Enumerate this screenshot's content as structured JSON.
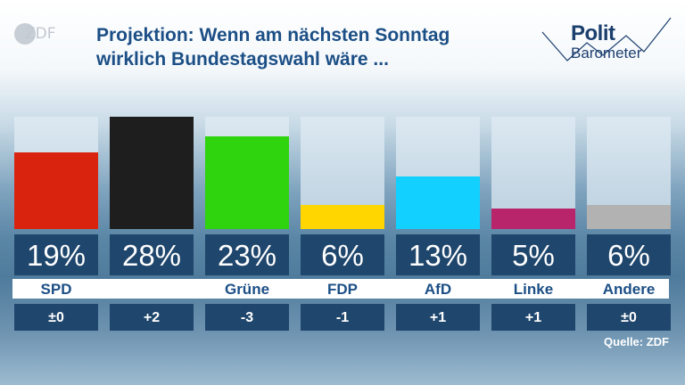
{
  "brand": {
    "logo_text": "ZDF"
  },
  "header": {
    "title_line1": "Projektion: Wenn am nächsten Sonntag",
    "title_line2": "wirklich Bundestagswahl wäre ..."
  },
  "series_logo": {
    "line1": "Polit",
    "line2": "Barometer"
  },
  "chart_data": {
    "type": "bar",
    "title": "Projektion: Wenn am nächsten Sonntag wirklich Bundestagswahl wäre ...",
    "ylim": [
      0,
      28
    ],
    "categories": [
      "SPD",
      "",
      "Grüne",
      "FDP",
      "AfD",
      "Linke",
      "Andere"
    ],
    "values": [
      19,
      28,
      23,
      6,
      13,
      5,
      6
    ],
    "value_labels": [
      "19%",
      "28%",
      "23%",
      "6%",
      "13%",
      "5%",
      "6%"
    ],
    "changes": [
      "±0",
      "+2",
      "-3",
      "-1",
      "+1",
      "+1",
      "±0"
    ],
    "colors": [
      "#d9230f",
      "#1e1e1e",
      "#2fd40f",
      "#ffd600",
      "#12d0ff",
      "#b8256b",
      "#b2b2b2"
    ]
  },
  "footer": {
    "source": "Quelle: ZDF"
  }
}
